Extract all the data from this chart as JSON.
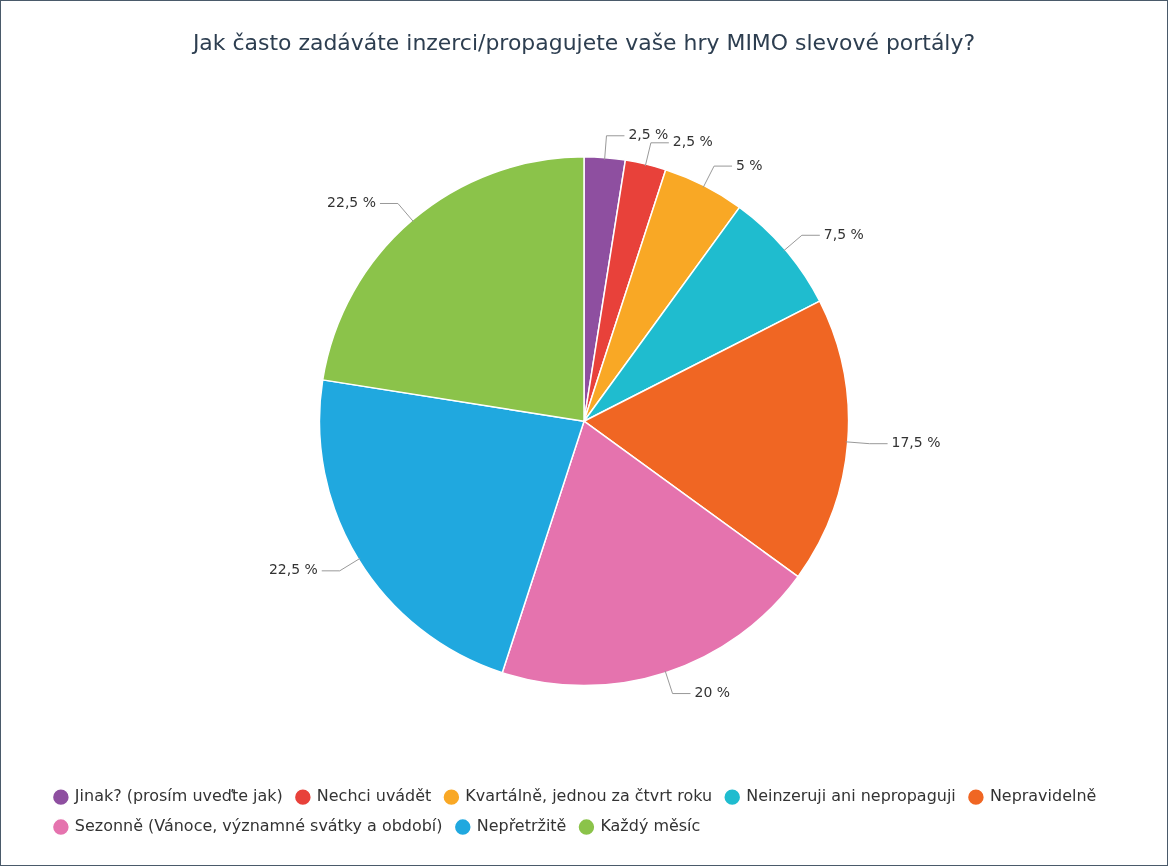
{
  "chart_data": {
    "type": "pie",
    "title": "Jak často zadáváte inzerci/propagujete vaše hry MIMO slevové portály?",
    "categories": [
      "Jinak? (prosím uveďte jak)",
      "Nechci uvádět",
      "Kvartálně, jednou za čtvrt roku",
      "Neinzeruji ani nepropaguji",
      "Nepravidelně",
      "Sezonně (Vánoce, významné svátky a období)",
      "Nepřetržitě",
      "Každý měsíc"
    ],
    "values": [
      2.5,
      2.5,
      5,
      7.5,
      17.5,
      20,
      22.5,
      22.5
    ],
    "colors": [
      "#8e4fa0",
      "#e8413a",
      "#f9a825",
      "#1fbccf",
      "#f06623",
      "#e573ae",
      "#20a8df",
      "#8bc34a"
    ],
    "value_labels": [
      "2,5 %",
      "2,5 %",
      "5 %",
      "7,5 %",
      "17,5 %",
      "20 %",
      "22,5 %",
      "22,5 %"
    ],
    "legend": "bottom"
  }
}
